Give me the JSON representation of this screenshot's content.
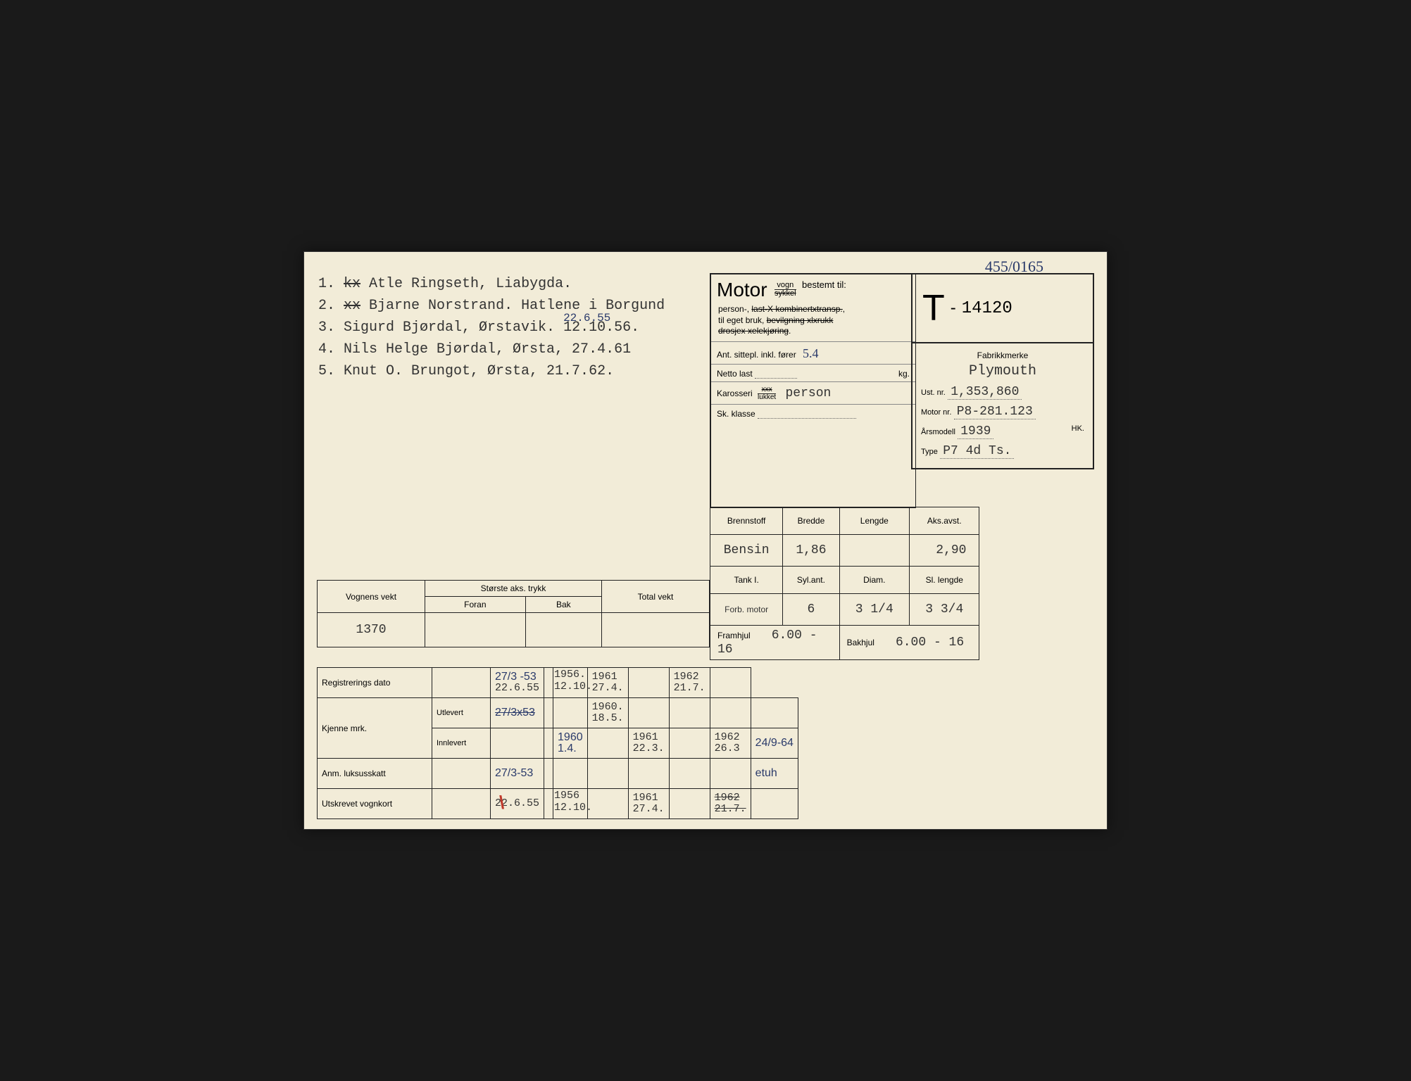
{
  "handnote_top": "455/0165",
  "owners": [
    {
      "n": "1.",
      "strike": "kx",
      "name": "Atle Ringseth, Liabygda."
    },
    {
      "n": "2.",
      "strike": "xx",
      "name": "Bjarne Norstrand. Hatlene i Borgund"
    },
    {
      "n": "3.",
      "strike": "",
      "name": "Sigurd Bjørdal, Ørstavik.  12.10.56.",
      "over": "22.6.55"
    },
    {
      "n": "4.",
      "strike": "",
      "name": "Nils Helge Bjørdal, Ørsta, 27.4.61"
    },
    {
      "n": "5.",
      "strike": "",
      "name": "Knut O. Brungot, Ørsta, 21.7.62."
    }
  ],
  "motor": {
    "title": "Motor",
    "frac_top": "vogn",
    "frac_bot": "sykkel",
    "bestemt": "bestemt til:",
    "line1": "person-, last-, kombinert-transp.,",
    "line2": "til eget bruk, bevilgning xl xrukk,",
    "line3": "drosje, telekjøring.",
    "strikes": [
      "last-, kombinert-transp.",
      "bevilgning xl xrukk",
      "drosje, telekjøring"
    ],
    "sittepl_lbl": "Ant. sittepl. inkl. fører",
    "sittepl_val": "5.4",
    "netto_lbl": "Netto last",
    "netto_unit": "kg.",
    "kaross_lbl": "Karosseri",
    "kaross_top": "åpent",
    "kaross_bot": "lukket",
    "kaross_val": "person",
    "skkl_lbl": "Sk. klasse"
  },
  "reg": {
    "letter": "T",
    "dash": "-",
    "number": "14120",
    "fabrikk_lbl": "Fabrikkmerke",
    "fabrikk": "Plymouth",
    "ust_lbl": "Ust. nr.",
    "ust": "1,353,860",
    "motor_lbl": "Motor nr.",
    "motor": "P8-281.123",
    "aar_lbl": "Årsmodell",
    "aar": "1939",
    "hk_lbl": "HK.",
    "type_lbl": "Type",
    "type": "P7 4d Ts."
  },
  "spec": {
    "h1": [
      "Brennstoff",
      "Bredde",
      "Lengde",
      "Aks.avst."
    ],
    "r1": [
      "Bensin",
      "1,86",
      "",
      "2,90"
    ],
    "h2": [
      "Tank        I.",
      "Syl.ant.",
      "Diam.",
      "Sl. lengde"
    ],
    "r2": [
      "Forb. motor",
      "6",
      "3 1/4",
      "3 3/4"
    ],
    "fram_lbl": "Framhjul",
    "fram": "6.00 - 16",
    "bak_lbl": "Bakhjul",
    "bak": "6.00 - 16"
  },
  "weight": {
    "c1": "Vognens vekt",
    "c2": "Største aks. trykk",
    "c2a": "Foran",
    "c2b": "Bak",
    "c3": "Total vekt",
    "val": "1370"
  },
  "bottom": {
    "rows": [
      {
        "lbl": "Registrerings dato",
        "sub": "",
        "cells": [
          {
            "hw": "27/3 -53",
            "tw": "22.6.55",
            "tw2": "1956.\n12.10."
          },
          "",
          "",
          {
            "tw": "1961\n27.4."
          },
          "",
          {
            "tw": "1962\n21.7."
          },
          ""
        ]
      },
      {
        "lbl": "Kjenne mrk.",
        "sub": "Utlevert",
        "cells": [
          {
            "hw": "27/3x53",
            "struck": true
          },
          "",
          "",
          {
            "tw": "1960.\n18.5."
          },
          "",
          "",
          "",
          ""
        ]
      },
      {
        "lbl": "",
        "sub": "Innlevert",
        "cells": [
          "",
          "",
          {
            "hw": "1960\n1.4."
          },
          "",
          {
            "tw": "1961\n22.3."
          },
          "",
          {
            "tw": "1962\n26.3"
          },
          {
            "hw": "24/9-64"
          }
        ]
      },
      {
        "lbl": "Anm. luksusskatt",
        "sub": "",
        "cells": [
          {
            "hw": "27/3-53"
          },
          "",
          "",
          "",
          "",
          "",
          "",
          {
            "hw": "etuh"
          }
        ]
      },
      {
        "lbl": "Utskrevet vognkort",
        "sub": "",
        "cells": [
          {
            "red": "\\\\",
            "tw": "22.6.55",
            "tw2": "1956\n12.10."
          },
          "",
          "",
          "",
          {
            "tw": "1961\n27.4."
          },
          "",
          {
            "tw": "1962\n21.7.",
            "struck": true
          },
          ""
        ]
      }
    ]
  }
}
